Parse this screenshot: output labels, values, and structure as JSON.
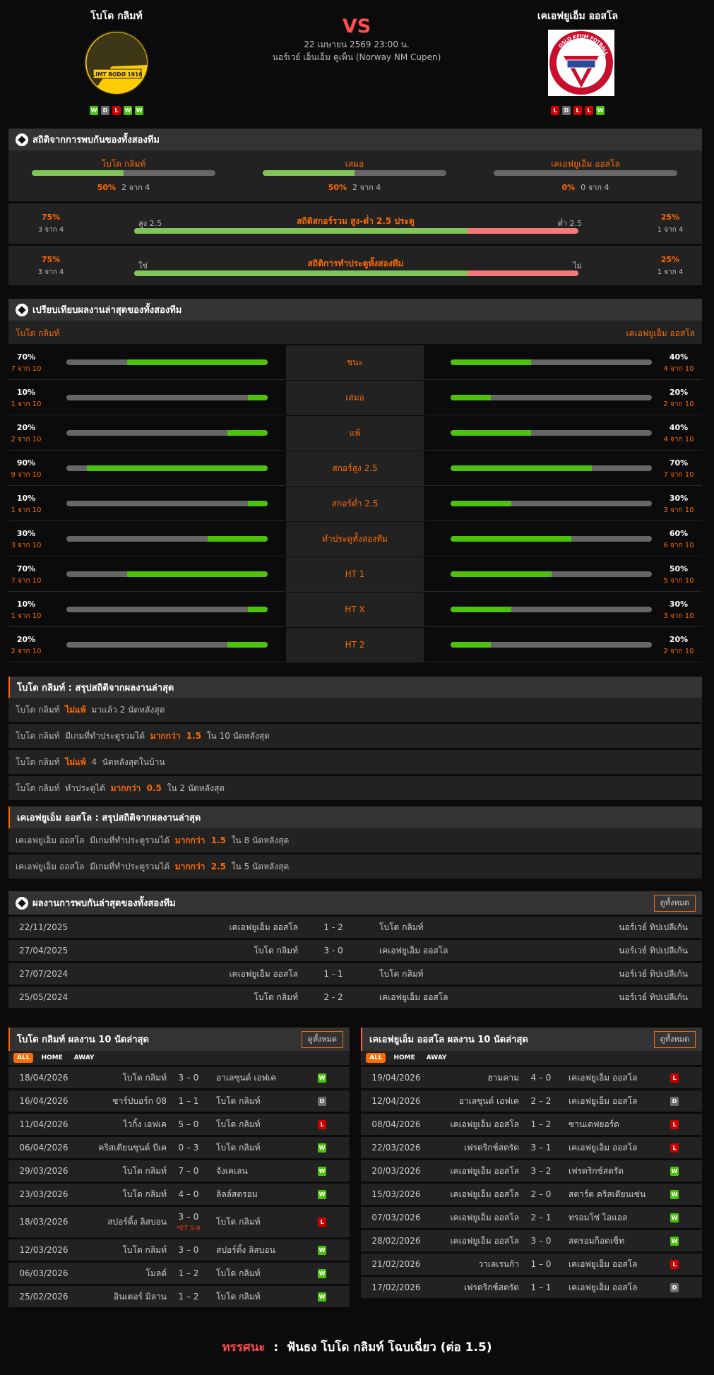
{
  "match": {
    "home": "โบโด กลิมท์",
    "away": "เคเอฟยูเอ็ม ออสโล",
    "vs": "VS",
    "datetime": "22 เมษายน 2569 23:00 น.",
    "competition": "นอร์เวย์ เอ็นเอ็ม คูเพ็น (Norway NM Cupen)",
    "home_form": [
      "W",
      "D",
      "L",
      "W",
      "W"
    ],
    "away_form": [
      "L",
      "D",
      "L",
      "L",
      "W"
    ],
    "home_logo_text": "LIMT BODØ 1916",
    "away_logo_text": "OSLO KFUM FOTBALL"
  },
  "colors": {
    "accent": "#ff6a00",
    "win": "#4cc30a",
    "draw": "#6d6d72",
    "loss": "#d00000",
    "bar_green": "#82c45a",
    "bar_red": "#f47a7a",
    "vs": "#ff4d4d"
  },
  "h2h_stats": {
    "title": "สถิติจากการพบกันของทั้งสองทีม",
    "icon": "soccer-ball-icon",
    "cols": [
      {
        "label": "โบโด กลิมท์",
        "pct": "50%",
        "frac": "2 จาก 4",
        "value": 50
      },
      {
        "label": "เสมอ",
        "pct": "50%",
        "frac": "2 จาก 4",
        "value": 50
      },
      {
        "label": "เคเอฟยูเอ็ม ออสโล",
        "pct": "0%",
        "frac": "0 จาก 4",
        "value": 0
      }
    ],
    "ou": {
      "title": "สถิติสกอร์รวม สูง-ต่ำ 2.5 ประตู",
      "left_label": "สูง 2.5",
      "right_label": "ต่ำ 2.5",
      "left_pct": "75%",
      "left_frac": "3 จาก 4",
      "right_pct": "25%",
      "right_frac": "1 จาก 4",
      "value": 75
    },
    "btts": {
      "title": "สถิติการทำประตูทั้งสองทีม",
      "left_label": "ใช่",
      "right_label": "ไม่",
      "left_pct": "75%",
      "left_frac": "3 จาก 4",
      "right_pct": "25%",
      "right_frac": "1 จาก 4",
      "value": 75
    }
  },
  "compare": {
    "title": "เปรียบเทียบผลงานล่าสุดของทั้งสองทีม",
    "home": "โบโด กลิมท์",
    "away": "เคเอฟยูเอ็ม ออสโล",
    "rows": [
      {
        "label": "ชนะ",
        "hp": "70%",
        "hf": "7 จาก 10",
        "hv": 70,
        "ap": "40%",
        "af": "4 จาก 10",
        "av": 40
      },
      {
        "label": "เสมอ",
        "hp": "10%",
        "hf": "1 จาก 10",
        "hv": 10,
        "ap": "20%",
        "af": "2 จาก 10",
        "av": 20
      },
      {
        "label": "แพ้",
        "hp": "20%",
        "hf": "2 จาก 10",
        "hv": 20,
        "ap": "40%",
        "af": "4 จาก 10",
        "av": 40
      },
      {
        "label": "สกอร์สูง 2.5",
        "hp": "90%",
        "hf": "9 จาก 10",
        "hv": 90,
        "ap": "70%",
        "af": "7 จาก 10",
        "av": 70
      },
      {
        "label": "สกอร์ต่ำ 2.5",
        "hp": "10%",
        "hf": "1 จาก 10",
        "hv": 10,
        "ap": "30%",
        "af": "3 จาก 10",
        "av": 30
      },
      {
        "label": "ทำประตูทั้งสองทีม",
        "hp": "30%",
        "hf": "3 จาก 10",
        "hv": 30,
        "ap": "60%",
        "af": "6 จาก 10",
        "av": 60
      },
      {
        "label": "HT 1",
        "hp": "70%",
        "hf": "7 จาก 10",
        "hv": 70,
        "ap": "50%",
        "af": "5 จาก 10",
        "av": 50
      },
      {
        "label": "HT X",
        "hp": "10%",
        "hf": "1 จาก 10",
        "hv": 10,
        "ap": "30%",
        "af": "3 จาก 10",
        "av": 30
      },
      {
        "label": "HT 2",
        "hp": "20%",
        "hf": "2 จาก 10",
        "hv": 20,
        "ap": "20%",
        "af": "2 จาก 10",
        "av": 20
      }
    ]
  },
  "summary_home": {
    "title": "โบโด กลิมท์ : สรุปสถิติจากผลงานล่าสุด",
    "rows": [
      [
        {
          "t": "โบโด กลิมท์  "
        },
        {
          "t": "ไม่แพ้",
          "hl": true
        },
        {
          "t": "  มาแล้ว 2 นัดหลังสุด"
        }
      ],
      [
        {
          "t": "โบโด กลิมท์  มีเกมที่ทำประตูรวมได้  "
        },
        {
          "t": "มากกว่า  1.5",
          "hl": true
        },
        {
          "t": "  ใน 10 นัดหลังสุด"
        }
      ],
      [
        {
          "t": "โบโด กลิมท์  "
        },
        {
          "t": "ไม่แพ้",
          "hl": true
        },
        {
          "t": "  4  นัดหลังสุดในบ้าน"
        }
      ],
      [
        {
          "t": "โบโด กลิมท์  ทำประตูได้  "
        },
        {
          "t": "มากกว่า  0.5",
          "hl": true
        },
        {
          "t": "  ใน 2 นัดหลังสุด"
        }
      ]
    ]
  },
  "summary_away": {
    "title": "เคเอฟยูเอ็ม ออสโล : สรุปสถิติจากผลงานล่าสุด",
    "rows": [
      [
        {
          "t": "เคเอฟยูเอ็ม ออสโล  มีเกมที่ทำประตูรวมได้  "
        },
        {
          "t": "มากกว่า  1.5",
          "hl": true
        },
        {
          "t": "  ใน 8 นัดหลังสุด"
        }
      ],
      [
        {
          "t": "เคเอฟยูเอ็ม ออสโล  มีเกมที่ทำประตูรวมได้  "
        },
        {
          "t": "มากกว่า  2.5",
          "hl": true
        },
        {
          "t": "  ใน 5 นัดหลังสุด"
        }
      ]
    ]
  },
  "h2h_results": {
    "title": "ผลงานการพบกันล่าสุดของทั้งสองทีม",
    "view_all": "ดูทั้งหมด",
    "rows": [
      {
        "date": "22/11/2025",
        "home": "เคเอฟยูเอ็ม ออสโล",
        "score": "1 - 2",
        "away": "โบโด กลิมท์",
        "league": "นอร์เวย์ ทิปเปลีเก้น"
      },
      {
        "date": "27/04/2025",
        "home": "โบโด กลิมท์",
        "score": "3 - 0",
        "away": "เคเอฟยูเอ็ม ออสโล",
        "league": "นอร์เวย์ ทิปเปลีเก้น"
      },
      {
        "date": "27/07/2024",
        "home": "เคเอฟยูเอ็ม ออสโล",
        "score": "1 - 1",
        "away": "โบโด กลิมท์",
        "league": "นอร์เวย์ ทิปเปลีเก้น"
      },
      {
        "date": "25/05/2024",
        "home": "โบโด กลิมท์",
        "score": "2 - 2",
        "away": "เคเอฟยูเอ็ม ออสโล",
        "league": "นอร์เวย์ ทิปเปลีเก้น"
      }
    ]
  },
  "form_tables": [
    {
      "title": "โบโด กลิมท์ ผลงาน 10 นัดล่าสุด",
      "view_all": "ดูทั้งหมด",
      "tabs": [
        "ALL",
        "HOME",
        "AWAY"
      ],
      "active_tab": "ALL",
      "rows": [
        {
          "date": "18/04/2026",
          "home": "โบโด กลิมท์",
          "score": "3 – 0",
          "away": "อาเลซุนด์ เอฟเค",
          "result": "W"
        },
        {
          "date": "16/04/2026",
          "home": "ซาร์ปบอร์ก 08",
          "score": "1 – 1",
          "away": "โบโด กลิมท์",
          "result": "D"
        },
        {
          "date": "11/04/2026",
          "home": "ไวกิ้ง เอฟเค",
          "score": "5 – 0",
          "away": "โบโด กลิมท์",
          "result": "L"
        },
        {
          "date": "06/04/2026",
          "home": "คริสเตียนซุนด์ บีเค",
          "score": "0 – 3",
          "away": "โบโด กลิมท์",
          "result": "W"
        },
        {
          "date": "29/03/2026",
          "home": "โบโด กลิมท์",
          "score": "7 – 0",
          "away": "จังเคเลน",
          "result": "W"
        },
        {
          "date": "23/03/2026",
          "home": "โบโด กลิมท์",
          "score": "4 – 0",
          "away": "ลิลล์สตรอม",
          "result": "W"
        },
        {
          "date": "18/03/2026",
          "home": "สปอร์ติ้ง ลิสบอน",
          "score": "3 – 0",
          "et": "*ET 5-0",
          "away": "โบโด กลิมท์",
          "result": "L"
        },
        {
          "date": "12/03/2026",
          "home": "โบโด กลิมท์",
          "score": "3 – 0",
          "away": "สปอร์ติ้ง ลิสบอน",
          "result": "W"
        },
        {
          "date": "06/03/2026",
          "home": "โมลด์",
          "score": "1 – 2",
          "away": "โบโด กลิมท์",
          "result": "W"
        },
        {
          "date": "25/02/2026",
          "home": "อินเตอร์ มิลาน",
          "score": "1 – 2",
          "away": "โบโด กลิมท์",
          "result": "W"
        }
      ]
    },
    {
      "title": "เคเอฟยูเอ็ม ออสโล ผลงาน 10 นัดล่าสุด",
      "view_all": "ดูทั้งหมด",
      "tabs": [
        "ALL",
        "HOME",
        "AWAY"
      ],
      "active_tab": "ALL",
      "rows": [
        {
          "date": "19/04/2026",
          "home": "ฮามคาม",
          "score": "4 – 0",
          "away": "เคเอฟยูเอ็ม ออสโล",
          "result": "L"
        },
        {
          "date": "12/04/2026",
          "home": "อาเลซุนด์ เอฟเค",
          "score": "2 – 2",
          "away": "เคเอฟยูเอ็ม ออสโล",
          "result": "D"
        },
        {
          "date": "08/04/2026",
          "home": "เคเอฟยูเอ็ม ออสโล",
          "score": "1 – 2",
          "away": "ซานเดฟยอร์ด",
          "result": "L"
        },
        {
          "date": "22/03/2026",
          "home": "เฟรดริกช์สตรัด",
          "score": "3 – 1",
          "away": "เคเอฟยูเอ็ม ออสโล",
          "result": "L"
        },
        {
          "date": "20/03/2026",
          "home": "เคเอฟยูเอ็ม ออสโล",
          "score": "3 – 2",
          "away": "เฟรดริกช์สตรัด",
          "result": "W"
        },
        {
          "date": "15/03/2026",
          "home": "เคเอฟยูเอ็ม ออสโล",
          "score": "2 – 0",
          "away": "สตาร์ต คริสเตียนเซ่น",
          "result": "W"
        },
        {
          "date": "07/03/2026",
          "home": "เคเอฟยูเอ็ม ออสโล",
          "score": "2 – 1",
          "away": "ทรอมโซ่ ไอแอล",
          "result": "W"
        },
        {
          "date": "28/02/2026",
          "home": "เคเอฟยูเอ็ม ออสโล",
          "score": "3 – 0",
          "away": "สตรอมก็อดเซ็ท",
          "result": "W"
        },
        {
          "date": "21/02/2026",
          "home": "วาเลเรนก้า",
          "score": "1 – 0",
          "away": "เคเอฟยูเอ็ม ออสโล",
          "result": "L"
        },
        {
          "date": "17/02/2026",
          "home": "เฟรดริกช์สตรัด",
          "score": "1 – 1",
          "away": "เคเอฟยูเอ็ม ออสโล",
          "result": "D"
        }
      ]
    }
  ],
  "prediction": {
    "label": "ทรรศนะ",
    "sep": ":",
    "text": "ฟันธง โบโด กลิมท์ โฉบเฉี่ยว (ต่อ 1.5)"
  }
}
